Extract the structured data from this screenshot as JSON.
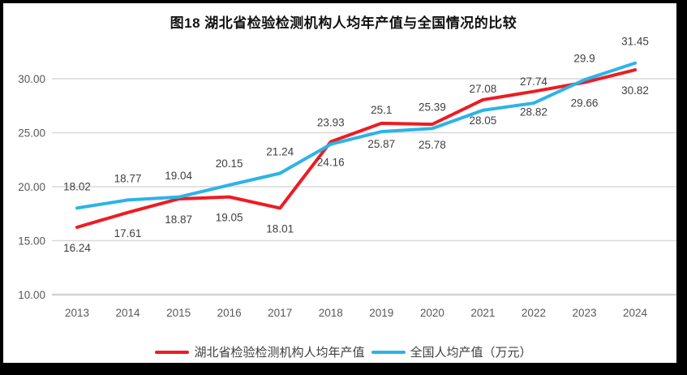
{
  "title": "图18  湖北省检验检测机构人均年产值与全国情况的比较",
  "chart_data": {
    "type": "line",
    "x": [
      2013,
      2014,
      2015,
      2016,
      2017,
      2018,
      2019,
      2020,
      2021,
      2022,
      2023,
      2024
    ],
    "series": [
      {
        "name": "湖北省检验检测机构人均年产值",
        "color": "#ED1C24",
        "values": [
          16.24,
          17.61,
          18.87,
          19.05,
          18.01,
          24.16,
          25.87,
          25.78,
          28.05,
          28.82,
          29.66,
          30.82
        ],
        "label_position": "below"
      },
      {
        "name": "全国人均产值（万元）",
        "color": "#2DB3E8",
        "values": [
          18.02,
          18.77,
          19.04,
          20.15,
          21.24,
          23.93,
          25.1,
          25.39,
          27.08,
          27.74,
          29.9,
          31.45
        ],
        "label_position": "above"
      }
    ],
    "y_ticks": [
      "10.00",
      "15.00",
      "20.00",
      "25.00",
      "30.00"
    ],
    "y_tick_values": [
      10,
      15,
      20,
      25,
      30
    ],
    "ylim": [
      10,
      32.5
    ],
    "grid": true,
    "legend_position": "bottom",
    "colors": {
      "axis_text": "#595959",
      "data_label_text": "#404040",
      "gridline": "#D9D9D9",
      "bottom_line": "#D3D3D3",
      "background": "#ffffff",
      "border": "#000000"
    }
  },
  "legend": {
    "items": [
      {
        "label": "湖北省检验检测机构人均年产值"
      },
      {
        "label": "全国人均产值（万元）"
      }
    ]
  }
}
